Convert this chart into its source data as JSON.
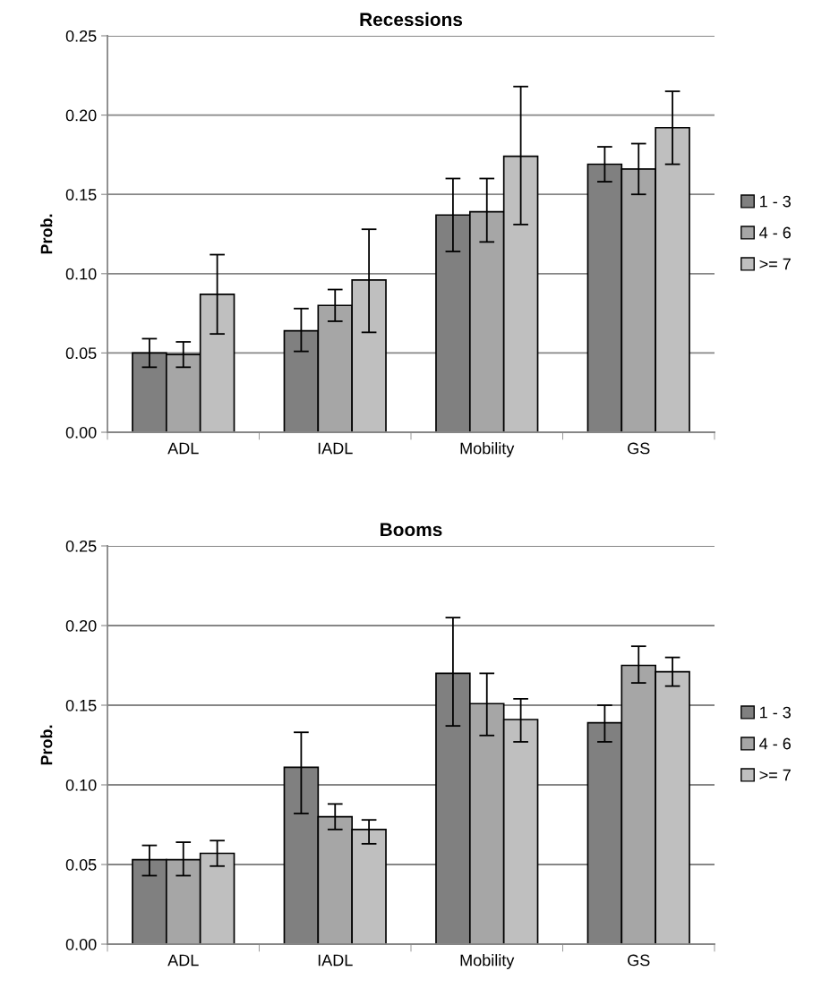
{
  "chart_data": [
    {
      "type": "bar",
      "title": "Recessions",
      "ylabel": "Prob.",
      "categories": [
        "ADL",
        "IADL",
        "Mobility",
        "GS"
      ],
      "series": [
        {
          "name": "1 - 3",
          "color": "#808080",
          "values": [
            0.05,
            0.064,
            0.137,
            0.169
          ],
          "errors": [
            [
              0.041,
              0.059
            ],
            [
              0.051,
              0.078
            ],
            [
              0.114,
              0.16
            ],
            [
              0.158,
              0.18
            ]
          ]
        },
        {
          "name": "4 - 6",
          "color": "#a6a6a6",
          "values": [
            0.049,
            0.08,
            0.139,
            0.166
          ],
          "errors": [
            [
              0.041,
              0.057
            ],
            [
              0.07,
              0.09
            ],
            [
              0.12,
              0.16
            ],
            [
              0.15,
              0.182
            ]
          ]
        },
        {
          "name": ">= 7",
          "color": "#bfbfbf",
          "values": [
            0.087,
            0.096,
            0.174,
            0.192
          ],
          "errors": [
            [
              0.062,
              0.112
            ],
            [
              0.063,
              0.128
            ],
            [
              0.131,
              0.218
            ],
            [
              0.169,
              0.215
            ]
          ]
        }
      ],
      "ylim": [
        0,
        0.25
      ],
      "yticks": [
        {
          "value": 0,
          "label": "0.00"
        },
        {
          "value": 0.05,
          "label": "0.05"
        },
        {
          "value": 0.1,
          "label": "0.10"
        },
        {
          "value": 0.15,
          "label": "0.15"
        },
        {
          "value": 0.2,
          "label": "0.20"
        },
        {
          "value": 0.25,
          "label": "0.25"
        }
      ],
      "grid": "y",
      "legend": "right"
    },
    {
      "type": "bar",
      "title": "Booms",
      "ylabel": "Prob.",
      "categories": [
        "ADL",
        "IADL",
        "Mobility",
        "GS"
      ],
      "series": [
        {
          "name": "1 - 3",
          "color": "#808080",
          "values": [
            0.053,
            0.111,
            0.17,
            0.139
          ],
          "errors": [
            [
              0.043,
              0.062
            ],
            [
              0.082,
              0.133
            ],
            [
              0.137,
              0.205
            ],
            [
              0.127,
              0.15
            ]
          ]
        },
        {
          "name": "4 - 6",
          "color": "#a6a6a6",
          "values": [
            0.053,
            0.08,
            0.151,
            0.175
          ],
          "errors": [
            [
              0.043,
              0.064
            ],
            [
              0.072,
              0.088
            ],
            [
              0.131,
              0.17
            ],
            [
              0.164,
              0.187
            ]
          ]
        },
        {
          "name": ">= 7",
          "color": "#bfbfbf",
          "values": [
            0.057,
            0.072,
            0.141,
            0.171
          ],
          "errors": [
            [
              0.049,
              0.065
            ],
            [
              0.063,
              0.078
            ],
            [
              0.127,
              0.154
            ],
            [
              0.162,
              0.18
            ]
          ]
        }
      ],
      "ylim": [
        0,
        0.25
      ],
      "yticks": [
        {
          "value": 0,
          "label": "0.00"
        },
        {
          "value": 0.05,
          "label": "0.05"
        },
        {
          "value": 0.1,
          "label": "0.10"
        },
        {
          "value": 0.15,
          "label": "0.15"
        },
        {
          "value": 0.2,
          "label": "0.20"
        },
        {
          "value": 0.25,
          "label": "0.25"
        }
      ],
      "grid": "y",
      "legend": "right"
    }
  ]
}
